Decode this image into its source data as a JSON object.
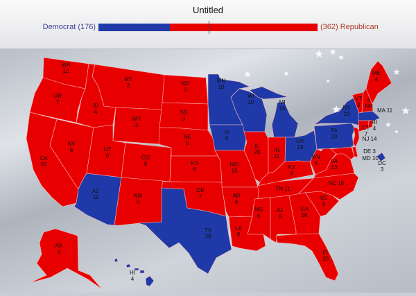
{
  "header": {
    "title": "Untitled",
    "dem_label": "Democrat (176)",
    "rep_label": "(362) Republican",
    "dem_votes": 176,
    "rep_votes": 362,
    "total_votes": 538,
    "win_threshold": 270
  },
  "colors": {
    "democrat": "#1f3aa8",
    "republican": "#e80000"
  },
  "states": [
    {
      "abbr": "WA",
      "votes": 12,
      "party": "R"
    },
    {
      "abbr": "OR",
      "votes": 7,
      "party": "R"
    },
    {
      "abbr": "CA",
      "votes": 55,
      "party": "R"
    },
    {
      "abbr": "NV",
      "votes": 6,
      "party": "R"
    },
    {
      "abbr": "ID",
      "votes": 4,
      "party": "R"
    },
    {
      "abbr": "MT",
      "votes": 3,
      "party": "R"
    },
    {
      "abbr": "WY",
      "votes": 3,
      "party": "R"
    },
    {
      "abbr": "UT",
      "votes": 6,
      "party": "R"
    },
    {
      "abbr": "CO",
      "votes": 9,
      "party": "R"
    },
    {
      "abbr": "AZ",
      "votes": 11,
      "party": "D"
    },
    {
      "abbr": "NM",
      "votes": 5,
      "party": "R"
    },
    {
      "abbr": "ND",
      "votes": 3,
      "party": "R"
    },
    {
      "abbr": "SD",
      "votes": 3,
      "party": "R"
    },
    {
      "abbr": "NE",
      "votes": 5,
      "party": "R"
    },
    {
      "abbr": "KS",
      "votes": 6,
      "party": "R"
    },
    {
      "abbr": "OK",
      "votes": 7,
      "party": "R"
    },
    {
      "abbr": "TX",
      "votes": 38,
      "party": "D"
    },
    {
      "abbr": "MN",
      "votes": 10,
      "party": "D"
    },
    {
      "abbr": "IA",
      "votes": 6,
      "party": "D"
    },
    {
      "abbr": "WI",
      "votes": 10,
      "party": "D"
    },
    {
      "abbr": "MI",
      "votes": 16,
      "party": "D"
    },
    {
      "abbr": "IL",
      "votes": 20,
      "party": "R"
    },
    {
      "abbr": "IN",
      "votes": 11,
      "party": "R"
    },
    {
      "abbr": "OH",
      "votes": 18,
      "party": "D"
    },
    {
      "abbr": "MO",
      "votes": 10,
      "party": "R"
    },
    {
      "abbr": "KY",
      "votes": 8,
      "party": "R"
    },
    {
      "abbr": "WV",
      "votes": 5,
      "party": "R"
    },
    {
      "abbr": "VA",
      "votes": 13,
      "party": "R"
    },
    {
      "abbr": "NC",
      "votes": 15,
      "party": "R"
    },
    {
      "abbr": "TN",
      "votes": 11,
      "party": "R"
    },
    {
      "abbr": "AR",
      "votes": 6,
      "party": "R"
    },
    {
      "abbr": "MS",
      "votes": 6,
      "party": "R"
    },
    {
      "abbr": "AL",
      "votes": 9,
      "party": "R"
    },
    {
      "abbr": "GA",
      "votes": 16,
      "party": "R"
    },
    {
      "abbr": "SC",
      "votes": 9,
      "party": "R"
    },
    {
      "abbr": "LA",
      "votes": 8,
      "party": "R"
    },
    {
      "abbr": "FL",
      "votes": 29,
      "party": "R"
    },
    {
      "abbr": "PA",
      "votes": 20,
      "party": "D"
    },
    {
      "abbr": "NY",
      "votes": 29,
      "party": "D"
    },
    {
      "abbr": "VT",
      "votes": 3,
      "party": "R"
    },
    {
      "abbr": "NH",
      "votes": 4,
      "party": "R"
    },
    {
      "abbr": "ME",
      "votes": 4,
      "party": "R"
    },
    {
      "abbr": "MA",
      "votes": 11,
      "party": "D"
    },
    {
      "abbr": "CT",
      "votes": 7,
      "party": "R"
    },
    {
      "abbr": "RI",
      "votes": 4,
      "party": "R"
    },
    {
      "abbr": "NJ",
      "votes": 14,
      "party": "R"
    },
    {
      "abbr": "DE",
      "votes": 3,
      "party": "R"
    },
    {
      "abbr": "MD",
      "votes": 10,
      "party": "R"
    },
    {
      "abbr": "DC",
      "votes": 3,
      "party": "D"
    },
    {
      "abbr": "AK",
      "votes": 3,
      "party": "R"
    },
    {
      "abbr": "HI",
      "votes": 4,
      "party": "D"
    }
  ]
}
